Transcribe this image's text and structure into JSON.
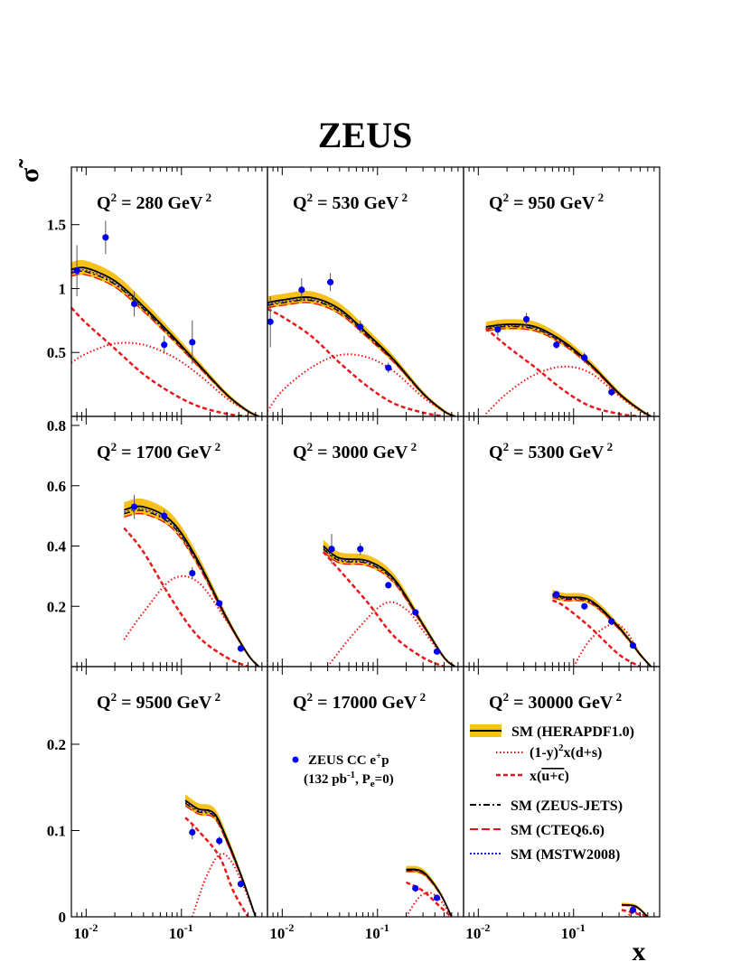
{
  "figure": {
    "title": "ZEUS",
    "ylabel": "σ̃",
    "xlabel": "x"
  },
  "legend": {
    "data_label_line1": "ZEUS CC e",
    "data_label_sup": "+",
    "data_label_suffix": "p",
    "data_label_line2": "(132 pb",
    "data_label_line2_sup": "-1",
    "data_label_line2_mid": ", P",
    "data_label_line2_sub": "e",
    "data_label_line2_end": "=0)",
    "entries": [
      {
        "key": "herapdf",
        "label": "SM (HERAPDF1.0)"
      },
      {
        "key": "ds",
        "label_pre": "(1-y)",
        "label_sup": "2",
        "label_post": "x(d+s)"
      },
      {
        "key": "uc",
        "label_pre": "x(",
        "label_over": "u+c",
        "label_post": ")"
      },
      {
        "key": "zeusjets",
        "label": "SM (ZEUS-JETS)"
      },
      {
        "key": "cteq",
        "label": "SM (CTEQ6.6)"
      },
      {
        "key": "mstw",
        "label": "SM (MSTW2008)"
      }
    ]
  },
  "chart_data": {
    "type": "line",
    "x_scale": "log",
    "xlim": [
      0.007,
      0.8
    ],
    "x_tick_labels": [
      {
        "base": "10",
        "exp": "-2",
        "value": 0.01
      },
      {
        "base": "10",
        "exp": "-1",
        "value": 0.1
      }
    ],
    "colors": {
      "band": "#f6c11a",
      "central": "#000000",
      "ds": "#ee1111",
      "uc": "#e8171a",
      "zeusjets": "#000000",
      "cteq": "#ee1111",
      "mstw": "#2222cc",
      "points": "#0000ee",
      "errors": "#555555"
    },
    "rows": [
      {
        "ylim": [
          0,
          1.95
        ],
        "yticks": [
          {
            "v": 0.5,
            "label": "0.5"
          },
          {
            "v": 1.0,
            "label": "1"
          },
          {
            "v": 1.5,
            "label": "1.5"
          }
        ]
      },
      {
        "ylim": [
          0,
          0.83
        ],
        "yticks": [
          {
            "v": 0.2,
            "label": "0.2"
          },
          {
            "v": 0.4,
            "label": "0.4"
          },
          {
            "v": 0.6,
            "label": "0.6"
          },
          {
            "v": 0.8,
            "label": "0.8"
          }
        ]
      },
      {
        "ylim": [
          0,
          0.29
        ],
        "yticks": [
          {
            "v": 0,
            "label": "0"
          },
          {
            "v": 0.1,
            "label": "0.1"
          },
          {
            "v": 0.2,
            "label": "0.2"
          }
        ]
      }
    ],
    "panels": [
      {
        "q2_value": "280",
        "row": 0,
        "col": 0,
        "sm": [
          [
            0.007,
            1.15
          ],
          [
            0.01,
            1.16
          ],
          [
            0.02,
            1.06
          ],
          [
            0.04,
            0.86
          ],
          [
            0.08,
            0.63
          ],
          [
            0.15,
            0.41
          ],
          [
            0.3,
            0.17
          ],
          [
            0.5,
            0.04
          ],
          [
            0.65,
            0.0
          ]
        ],
        "ds": [
          [
            0.007,
            0.42
          ],
          [
            0.01,
            0.49
          ],
          [
            0.02,
            0.57
          ],
          [
            0.04,
            0.56
          ],
          [
            0.08,
            0.47
          ],
          [
            0.15,
            0.33
          ],
          [
            0.3,
            0.14
          ],
          [
            0.5,
            0.04
          ],
          [
            0.65,
            0.0
          ]
        ],
        "uc": [
          [
            0.007,
            0.85
          ],
          [
            0.01,
            0.73
          ],
          [
            0.02,
            0.53
          ],
          [
            0.04,
            0.33
          ],
          [
            0.08,
            0.18
          ],
          [
            0.15,
            0.08
          ],
          [
            0.3,
            0.02
          ],
          [
            0.5,
            0.0
          ]
        ],
        "points": [
          {
            "x": 0.008,
            "y": 1.14,
            "err": 0.2
          },
          {
            "x": 0.016,
            "y": 1.4,
            "err": 0.13
          },
          {
            "x": 0.032,
            "y": 0.88,
            "err": 0.1
          },
          {
            "x": 0.066,
            "y": 0.56,
            "err": 0.07
          },
          {
            "x": 0.13,
            "y": 0.58,
            "err": 0.17
          }
        ]
      },
      {
        "q2_value": "530",
        "row": 0,
        "col": 1,
        "sm": [
          [
            0.007,
            0.89
          ],
          [
            0.01,
            0.91
          ],
          [
            0.02,
            0.93
          ],
          [
            0.04,
            0.84
          ],
          [
            0.08,
            0.64
          ],
          [
            0.15,
            0.44
          ],
          [
            0.3,
            0.18
          ],
          [
            0.5,
            0.04
          ],
          [
            0.65,
            0.0
          ]
        ],
        "ds": [
          [
            0.007,
            0.04
          ],
          [
            0.01,
            0.2
          ],
          [
            0.02,
            0.38
          ],
          [
            0.04,
            0.48
          ],
          [
            0.08,
            0.46
          ],
          [
            0.15,
            0.35
          ],
          [
            0.3,
            0.15
          ],
          [
            0.5,
            0.04
          ],
          [
            0.65,
            0.0
          ]
        ],
        "uc": [
          [
            0.007,
            0.84
          ],
          [
            0.01,
            0.78
          ],
          [
            0.02,
            0.63
          ],
          [
            0.04,
            0.42
          ],
          [
            0.08,
            0.23
          ],
          [
            0.15,
            0.1
          ],
          [
            0.3,
            0.03
          ],
          [
            0.5,
            0.0
          ]
        ],
        "points": [
          {
            "x": 0.0075,
            "y": 0.74,
            "err": 0.2
          },
          {
            "x": 0.016,
            "y": 0.99,
            "err": 0.09
          },
          {
            "x": 0.032,
            "y": 1.05,
            "err": 0.07
          },
          {
            "x": 0.066,
            "y": 0.7,
            "err": 0.05
          },
          {
            "x": 0.13,
            "y": 0.38,
            "err": 0.04
          }
        ]
      },
      {
        "q2_value": "950",
        "row": 0,
        "col": 2,
        "sm": [
          [
            0.012,
            0.7
          ],
          [
            0.02,
            0.72
          ],
          [
            0.04,
            0.7
          ],
          [
            0.08,
            0.58
          ],
          [
            0.15,
            0.41
          ],
          [
            0.3,
            0.18
          ],
          [
            0.5,
            0.05
          ],
          [
            0.65,
            0.0
          ]
        ],
        "ds": [
          [
            0.012,
            0.02
          ],
          [
            0.02,
            0.18
          ],
          [
            0.04,
            0.33
          ],
          [
            0.08,
            0.39
          ],
          [
            0.15,
            0.34
          ],
          [
            0.3,
            0.16
          ],
          [
            0.5,
            0.04
          ],
          [
            0.65,
            0.0
          ]
        ],
        "uc": [
          [
            0.012,
            0.69
          ],
          [
            0.02,
            0.55
          ],
          [
            0.04,
            0.38
          ],
          [
            0.08,
            0.2
          ],
          [
            0.15,
            0.08
          ],
          [
            0.3,
            0.02
          ],
          [
            0.5,
            0.0
          ]
        ],
        "points": [
          {
            "x": 0.016,
            "y": 0.68,
            "err": 0.05
          },
          {
            "x": 0.032,
            "y": 0.76,
            "err": 0.05
          },
          {
            "x": 0.066,
            "y": 0.56,
            "err": 0.03
          },
          {
            "x": 0.13,
            "y": 0.46,
            "err": 0.04
          },
          {
            "x": 0.25,
            "y": 0.19,
            "err": 0.03
          }
        ]
      },
      {
        "q2_value": "1700",
        "row": 1,
        "col": 0,
        "sm": [
          [
            0.025,
            0.52
          ],
          [
            0.04,
            0.53
          ],
          [
            0.08,
            0.48
          ],
          [
            0.15,
            0.35
          ],
          [
            0.3,
            0.16
          ],
          [
            0.5,
            0.04
          ],
          [
            0.65,
            0.0
          ]
        ],
        "ds": [
          [
            0.025,
            0.09
          ],
          [
            0.04,
            0.18
          ],
          [
            0.08,
            0.29
          ],
          [
            0.15,
            0.28
          ],
          [
            0.3,
            0.15
          ],
          [
            0.5,
            0.04
          ],
          [
            0.65,
            0.0
          ]
        ],
        "uc": [
          [
            0.025,
            0.46
          ],
          [
            0.04,
            0.38
          ],
          [
            0.08,
            0.22
          ],
          [
            0.15,
            0.1
          ],
          [
            0.3,
            0.03
          ],
          [
            0.5,
            0.0
          ]
        ],
        "points": [
          {
            "x": 0.032,
            "y": 0.53,
            "err": 0.04
          },
          {
            "x": 0.066,
            "y": 0.5,
            "err": 0.02
          },
          {
            "x": 0.13,
            "y": 0.31,
            "err": 0.02
          },
          {
            "x": 0.25,
            "y": 0.21,
            "err": 0.01
          },
          {
            "x": 0.42,
            "y": 0.06,
            "err": 0.01
          }
        ]
      },
      {
        "q2_value": "3000",
        "row": 1,
        "col": 1,
        "sm": [
          [
            0.027,
            0.4
          ],
          [
            0.04,
            0.36
          ],
          [
            0.08,
            0.35
          ],
          [
            0.15,
            0.29
          ],
          [
            0.3,
            0.14
          ],
          [
            0.5,
            0.03
          ],
          [
            0.65,
            0.0
          ]
        ],
        "ds": [
          [
            0.03,
            0.0
          ],
          [
            0.06,
            0.12
          ],
          [
            0.12,
            0.21
          ],
          [
            0.2,
            0.19
          ],
          [
            0.3,
            0.12
          ],
          [
            0.5,
            0.03
          ],
          [
            0.65,
            0.0
          ]
        ],
        "uc": [
          [
            0.027,
            0.38
          ],
          [
            0.04,
            0.32
          ],
          [
            0.08,
            0.21
          ],
          [
            0.15,
            0.1
          ],
          [
            0.3,
            0.03
          ],
          [
            0.5,
            0.0
          ]
        ],
        "points": [
          {
            "x": 0.033,
            "y": 0.39,
            "err": 0.05
          },
          {
            "x": 0.066,
            "y": 0.39,
            "err": 0.02
          },
          {
            "x": 0.13,
            "y": 0.27,
            "err": 0.01
          },
          {
            "x": 0.25,
            "y": 0.18,
            "err": 0.01
          },
          {
            "x": 0.42,
            "y": 0.05,
            "err": 0.01
          }
        ]
      },
      {
        "q2_value": "5300",
        "row": 1,
        "col": 2,
        "sm": [
          [
            0.06,
            0.24
          ],
          [
            0.08,
            0.23
          ],
          [
            0.15,
            0.22
          ],
          [
            0.3,
            0.13
          ],
          [
            0.5,
            0.04
          ],
          [
            0.65,
            0.0
          ]
        ],
        "ds": [
          [
            0.1,
            0.0
          ],
          [
            0.15,
            0.09
          ],
          [
            0.25,
            0.14
          ],
          [
            0.35,
            0.12
          ],
          [
            0.5,
            0.04
          ],
          [
            0.65,
            0.0
          ]
        ],
        "uc": [
          [
            0.06,
            0.22
          ],
          [
            0.08,
            0.2
          ],
          [
            0.15,
            0.13
          ],
          [
            0.3,
            0.04
          ],
          [
            0.5,
            0.0
          ]
        ],
        "points": [
          {
            "x": 0.066,
            "y": 0.24,
            "err": 0.01
          },
          {
            "x": 0.13,
            "y": 0.2,
            "err": 0.01
          },
          {
            "x": 0.25,
            "y": 0.15,
            "err": 0.01
          },
          {
            "x": 0.42,
            "y": 0.07,
            "err": 0.01
          }
        ]
      },
      {
        "q2_value": "9500",
        "row": 2,
        "col": 0,
        "sm": [
          [
            0.11,
            0.135
          ],
          [
            0.15,
            0.125
          ],
          [
            0.22,
            0.12
          ],
          [
            0.3,
            0.09
          ],
          [
            0.45,
            0.04
          ],
          [
            0.6,
            0.0
          ]
        ],
        "ds": [
          [
            0.13,
            0.0
          ],
          [
            0.18,
            0.045
          ],
          [
            0.25,
            0.072
          ],
          [
            0.33,
            0.065
          ],
          [
            0.45,
            0.035
          ],
          [
            0.6,
            0.0
          ]
        ],
        "uc": [
          [
            0.11,
            0.115
          ],
          [
            0.15,
            0.1
          ],
          [
            0.25,
            0.07
          ],
          [
            0.35,
            0.03
          ],
          [
            0.5,
            0.0
          ]
        ],
        "points": [
          {
            "x": 0.13,
            "y": 0.098,
            "err": 0.008
          },
          {
            "x": 0.25,
            "y": 0.088,
            "err": 0.005
          },
          {
            "x": 0.42,
            "y": 0.038,
            "err": 0.004
          }
        ]
      },
      {
        "q2_value": "17000",
        "row": 2,
        "col": 1,
        "sm": [
          [
            0.2,
            0.055
          ],
          [
            0.3,
            0.052
          ],
          [
            0.45,
            0.028
          ],
          [
            0.6,
            0.0
          ]
        ],
        "ds": [
          [
            0.2,
            0.0
          ],
          [
            0.27,
            0.022
          ],
          [
            0.35,
            0.028
          ],
          [
            0.45,
            0.02
          ],
          [
            0.6,
            0.0
          ]
        ],
        "uc": [
          [
            0.2,
            0.04
          ],
          [
            0.3,
            0.03
          ],
          [
            0.45,
            0.012
          ],
          [
            0.6,
            0.0
          ]
        ],
        "points": [
          {
            "x": 0.25,
            "y": 0.033,
            "err": 0.004
          },
          {
            "x": 0.42,
            "y": 0.022,
            "err": 0.003
          }
        ]
      },
      {
        "q2_value": "30000",
        "row": 2,
        "col": 2,
        "sm": [
          [
            0.32,
            0.014
          ],
          [
            0.45,
            0.012
          ],
          [
            0.6,
            0.0
          ]
        ],
        "ds": [
          [
            0.35,
            0.0
          ],
          [
            0.45,
            0.005
          ],
          [
            0.6,
            0.0
          ]
        ],
        "uc": [
          [
            0.32,
            0.008
          ],
          [
            0.45,
            0.004
          ],
          [
            0.6,
            0.0
          ]
        ],
        "points": [
          {
            "x": 0.42,
            "y": 0.008,
            "err": 0.002
          }
        ]
      }
    ]
  }
}
